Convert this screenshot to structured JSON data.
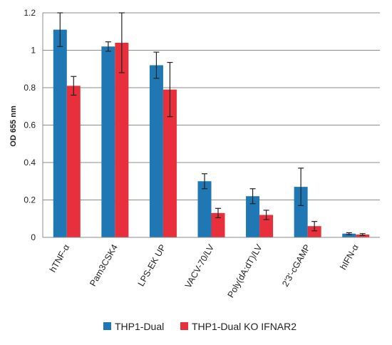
{
  "chart_data": {
    "type": "bar",
    "ylabel": "OD 655 nm",
    "xlabel": "",
    "ylim": [
      0,
      1.2
    ],
    "yticks": [
      "0",
      "0.2",
      "0.4",
      "0.6",
      "0.8",
      "1",
      "1.2"
    ],
    "grid": true,
    "legend_position": "bottom",
    "categories": [
      "hTNF-α",
      "Pam3CSK4",
      "LPS-EK UP",
      "VACV-70/LV",
      "Poly(dA:dT)/LV",
      "2'3'-cGAMP",
      "hIFN-α"
    ],
    "series": [
      {
        "name": "THP1-Dual",
        "color": "#1f77b4",
        "values": [
          1.11,
          1.02,
          0.92,
          0.3,
          0.22,
          0.27,
          0.02
        ],
        "error": [
          0.09,
          0.025,
          0.07,
          0.04,
          0.04,
          0.1,
          0.005
        ]
      },
      {
        "name": "THP1-Dual KO IFNAR2",
        "color": "#e8303c",
        "values": [
          0.81,
          1.04,
          0.79,
          0.13,
          0.12,
          0.06,
          0.015
        ],
        "error": [
          0.05,
          0.16,
          0.145,
          0.025,
          0.025,
          0.025,
          0.005
        ]
      }
    ]
  }
}
